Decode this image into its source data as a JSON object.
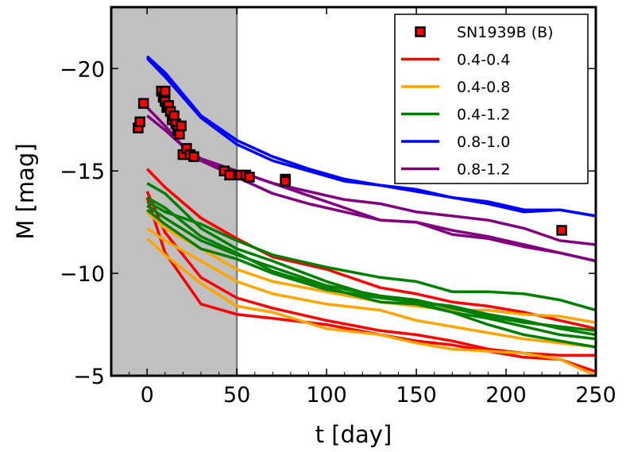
{
  "chart_data": {
    "type": "line",
    "title": "",
    "xlabel": "t [day]",
    "ylabel": "M [mag]",
    "xlim": [
      -20,
      250
    ],
    "ylim": [
      -5,
      -23
    ],
    "y_inverted": true,
    "grid": false,
    "legend_position": "top-right",
    "xticks": [
      0,
      50,
      100,
      150,
      200,
      250
    ],
    "xtick_labels": [
      "0",
      "50",
      "100",
      "150",
      "200",
      "250"
    ],
    "yticks": [
      -20,
      -15,
      -10,
      -5
    ],
    "ytick_labels": [
      "−20",
      "−15",
      "−10",
      "−5"
    ],
    "shaded_region": {
      "x": [
        -20,
        50
      ],
      "color": "#c0c0c0",
      "edge_color": "#808080"
    },
    "observations": {
      "name": "SN1939B (B)",
      "color": "#ff0000",
      "points": [
        {
          "x": -5,
          "y": -17.1
        },
        {
          "x": -4,
          "y": -17.4
        },
        {
          "x": -2,
          "y": -18.3
        },
        {
          "x": 8,
          "y": -18.9
        },
        {
          "x": 9,
          "y": -18.6
        },
        {
          "x": 10,
          "y": -18.9
        },
        {
          "x": 10,
          "y": -18.4
        },
        {
          "x": 11,
          "y": -18.1
        },
        {
          "x": 12,
          "y": -18.2
        },
        {
          "x": 13,
          "y": -17.9
        },
        {
          "x": 14,
          "y": -17.5
        },
        {
          "x": 15,
          "y": -17.7
        },
        {
          "x": 16,
          "y": -17.3
        },
        {
          "x": 17,
          "y": -17.0
        },
        {
          "x": 18,
          "y": -16.8
        },
        {
          "x": 19,
          "y": -17.2
        },
        {
          "x": 20,
          "y": -15.8
        },
        {
          "x": 22,
          "y": -16.1
        },
        {
          "x": 24,
          "y": -15.8
        },
        {
          "x": 26,
          "y": -15.7
        },
        {
          "x": 43,
          "y": -15.0
        },
        {
          "x": 46,
          "y": -14.8
        },
        {
          "x": 52,
          "y": -14.8
        },
        {
          "x": 55,
          "y": -14.8
        },
        {
          "x": 57,
          "y": -14.7
        },
        {
          "x": 77,
          "y": -14.6
        },
        {
          "x": 77,
          "y": -14.5
        },
        {
          "x": 231,
          "y": -12.1
        }
      ]
    },
    "series": [
      {
        "name": "0.4-0.4",
        "color": "#ff0000",
        "lines": [
          {
            "x": [
              0,
              10,
              30,
              50,
              70,
              100,
              130,
              150,
              170,
              190,
              210,
              230,
              250
            ],
            "y": [
              -13.7,
              -11.0,
              -8.5,
              -8.0,
              -7.8,
              -7.5,
              -7.0,
              -6.7,
              -6.5,
              -6.2,
              -5.9,
              -5.8,
              -5.2
            ]
          },
          {
            "x": [
              0,
              10,
              30,
              50,
              70,
              100,
              130,
              150,
              170,
              190,
              210,
              230,
              250
            ],
            "y": [
              -14.0,
              -12.0,
              -9.8,
              -8.8,
              -8.3,
              -7.7,
              -7.2,
              -7.0,
              -6.7,
              -6.3,
              -6.1,
              -6.0,
              -6.0
            ]
          },
          {
            "x": [
              0,
              10,
              30,
              50,
              70,
              100,
              130,
              150,
              170,
              190,
              210,
              230,
              250
            ],
            "y": [
              -15.1,
              -14.2,
              -12.7,
              -11.7,
              -10.8,
              -10.2,
              -9.3,
              -9.0,
              -8.6,
              -8.4,
              -8.1,
              -7.7,
              -7.3
            ]
          }
        ]
      },
      {
        "name": "0.4-0.8",
        "color": "#ffa500",
        "lines": [
          {
            "x": [
              0,
              10,
              30,
              50,
              70,
              100,
              130,
              150,
              170,
              190,
              210,
              230,
              250
            ],
            "y": [
              -11.7,
              -10.9,
              -9.5,
              -8.4,
              -8.1,
              -7.3,
              -7.0,
              -6.6,
              -6.3,
              -6.2,
              -6.1,
              -5.8,
              -5.0
            ]
          },
          {
            "x": [
              0,
              10,
              30,
              50,
              70,
              100,
              130,
              150,
              170,
              190,
              210,
              230,
              250
            ],
            "y": [
              -12.2,
              -11.6,
              -10.6,
              -9.6,
              -9.0,
              -8.5,
              -8.2,
              -7.7,
              -7.4,
              -7.1,
              -6.8,
              -6.6,
              -6.4
            ]
          },
          {
            "x": [
              0,
              10,
              30,
              50,
              70,
              100,
              130,
              150,
              170,
              190,
              210,
              230,
              250
            ],
            "y": [
              -13.0,
              -12.2,
              -11.2,
              -10.2,
              -9.6,
              -9.1,
              -8.6,
              -8.4,
              -8.2,
              -8.2,
              -8.0,
              -7.9,
              -7.6
            ]
          }
        ]
      },
      {
        "name": "0.4-1.2",
        "color": "#008000",
        "lines": [
          {
            "x": [
              0,
              10,
              30,
              50,
              70,
              100,
              130,
              150,
              170,
              190,
              210,
              230,
              250
            ],
            "y": [
              -14.4,
              -13.9,
              -12.2,
              -11.2,
              -10.6,
              -9.6,
              -8.8,
              -8.6,
              -8.1,
              -7.5,
              -7.0,
              -6.7,
              -6.4
            ]
          },
          {
            "x": [
              0,
              10,
              30,
              50,
              70,
              100,
              130,
              150,
              170,
              190,
              210,
              230,
              250
            ],
            "y": [
              -13.7,
              -13.2,
              -11.8,
              -11.0,
              -10.1,
              -9.3,
              -8.6,
              -8.5,
              -8.1,
              -7.8,
              -7.4,
              -7.0,
              -6.8
            ]
          },
          {
            "x": [
              0,
              10,
              30,
              50,
              70,
              100,
              130,
              150,
              170,
              190,
              210,
              230,
              250
            ],
            "y": [
              -13.3,
              -12.7,
              -11.6,
              -10.9,
              -10.3,
              -9.4,
              -8.9,
              -8.7,
              -8.3,
              -7.9,
              -7.6,
              -7.4,
              -7.2
            ]
          },
          {
            "x": [
              0,
              10,
              30,
              50,
              70,
              100,
              130,
              150,
              170,
              190,
              210,
              230,
              250
            ],
            "y": [
              -13.1,
              -12.4,
              -11.2,
              -10.7,
              -10.0,
              -9.2,
              -8.8,
              -8.6,
              -8.4,
              -8.0,
              -7.7,
              -7.3,
              -7.0
            ]
          },
          {
            "x": [
              0,
              10,
              30,
              50,
              70,
              100,
              130,
              150,
              170,
              190,
              210,
              230,
              250
            ],
            "y": [
              -13.5,
              -13.0,
              -12.4,
              -11.6,
              -10.9,
              -10.3,
              -9.8,
              -9.6,
              -9.1,
              -9.1,
              -9.0,
              -8.7,
              -8.2
            ]
          }
        ]
      },
      {
        "name": "0.8-1.0",
        "color": "#0000ff",
        "lines": [
          {
            "x": [
              0,
              10,
              30,
              50,
              70,
              90,
              110,
              130,
              150,
              170,
              190,
              210,
              230,
              250
            ],
            "y": [
              -20.5,
              -19.6,
              -17.6,
              -16.3,
              -15.5,
              -15.0,
              -14.5,
              -14.3,
              -14.0,
              -13.7,
              -13.4,
              -13.0,
              -13.1,
              -12.8
            ]
          },
          {
            "x": [
              0,
              10,
              30,
              50,
              70,
              90,
              110,
              130,
              150,
              170,
              190,
              210,
              230,
              250
            ],
            "y": [
              -20.6,
              -19.8,
              -17.7,
              -16.5,
              -15.7,
              -15.1,
              -14.6,
              -14.3,
              -14.1,
              -13.7,
              -13.5,
              -13.1,
              -13.1,
              -12.8
            ]
          }
        ]
      },
      {
        "name": "0.8-1.2",
        "color": "#800080",
        "lines": [
          {
            "x": [
              0,
              10,
              20,
              30,
              50,
              70,
              90,
              110,
              130,
              150,
              170,
              190,
              210,
              230,
              250
            ],
            "y": [
              -18.1,
              -17.2,
              -16.2,
              -15.6,
              -15.0,
              -14.4,
              -14.0,
              -13.6,
              -13.4,
              -13.0,
              -12.8,
              -12.6,
              -12.2,
              -11.6,
              -11.4
            ]
          },
          {
            "x": [
              0,
              10,
              20,
              30,
              50,
              70,
              90,
              110,
              130,
              150,
              170,
              190,
              210,
              230,
              250
            ],
            "y": [
              -17.7,
              -17.0,
              -16.2,
              -15.5,
              -14.7,
              -13.9,
              -13.4,
              -13.0,
              -12.6,
              -12.5,
              -12.1,
              -11.8,
              -11.4,
              -11.0,
              -10.6
            ]
          },
          {
            "x": [
              30,
              50,
              70,
              90,
              110,
              130,
              150,
              170,
              190,
              210,
              230,
              250
            ],
            "y": [
              -15.5,
              -15.0,
              -14.4,
              -13.8,
              -13.2,
              -12.6,
              -12.5,
              -11.9,
              -11.7,
              -11.3,
              -11.0,
              -10.6
            ]
          }
        ]
      }
    ]
  }
}
